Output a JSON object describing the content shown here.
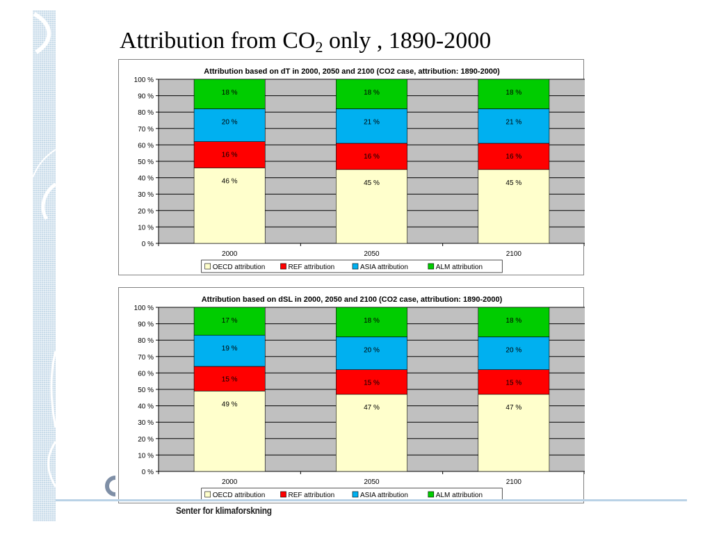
{
  "slide": {
    "title_main": "Attribution from CO",
    "title_sub": "2",
    "title_rest": " only , 1890-2000",
    "footer_text": "Senter for klimaforskning"
  },
  "colors": {
    "OECD": "#ffffcc",
    "REF": "#ff0000",
    "ASIA": "#00b0f0",
    "ALM": "#00cc00",
    "plot_bg": "#c0c0c0",
    "sidebar": "#c9dcea"
  },
  "chart_data": [
    {
      "type": "bar",
      "stacked": true,
      "title": "Attribution based on dT in 2000, 2050 and 2100 (CO2 case, attribution: 1890-2000)",
      "categories": [
        "2000",
        "2050",
        "2100"
      ],
      "y_ticks": [
        "0 %",
        "10 %",
        "20 %",
        "30 %",
        "40 %",
        "50 %",
        "60 %",
        "70 %",
        "80 %",
        "90 %",
        "100 %"
      ],
      "ylim": [
        0,
        100
      ],
      "legend_position": "bottom",
      "series": [
        {
          "name": "OECD attribution",
          "key": "OECD",
          "values": [
            46,
            45,
            45
          ],
          "labels": [
            "46 %",
            "45 %",
            "45 %"
          ]
        },
        {
          "name": "REF attribution",
          "key": "REF",
          "values": [
            16,
            16,
            16
          ],
          "labels": [
            "16 %",
            "16 %",
            "16 %"
          ]
        },
        {
          "name": "ASIA attribution",
          "key": "ASIA",
          "values": [
            20,
            21,
            21
          ],
          "labels": [
            "20 %",
            "21 %",
            "21 %"
          ]
        },
        {
          "name": "ALM attribution",
          "key": "ALM",
          "values": [
            18,
            18,
            18
          ],
          "labels": [
            "18 %",
            "18 %",
            "18 %"
          ]
        }
      ]
    },
    {
      "type": "bar",
      "stacked": true,
      "title": "Attribution based on dSL in 2000, 2050 and 2100 (CO2 case, attribution: 1890-2000)",
      "categories": [
        "2000",
        "2050",
        "2100"
      ],
      "y_ticks": [
        "0 %",
        "10 %",
        "20 %",
        "30 %",
        "40 %",
        "50 %",
        "60 %",
        "70 %",
        "80 %",
        "90 %",
        "100 %"
      ],
      "ylim": [
        0,
        100
      ],
      "legend_position": "bottom",
      "series": [
        {
          "name": "OECD attribution",
          "key": "OECD",
          "values": [
            49,
            47,
            47
          ],
          "labels": [
            "49 %",
            "47 %",
            "47 %"
          ]
        },
        {
          "name": "REF attribution",
          "key": "REF",
          "values": [
            15,
            15,
            15
          ],
          "labels": [
            "15 %",
            "15 %",
            "15 %"
          ]
        },
        {
          "name": "ASIA attribution",
          "key": "ASIA",
          "values": [
            19,
            20,
            20
          ],
          "labels": [
            "19 %",
            "20 %",
            "20 %"
          ]
        },
        {
          "name": "ALM attribution",
          "key": "ALM",
          "values": [
            17,
            18,
            18
          ],
          "labels": [
            "17 %",
            "18 %",
            "18 %"
          ]
        }
      ]
    }
  ]
}
